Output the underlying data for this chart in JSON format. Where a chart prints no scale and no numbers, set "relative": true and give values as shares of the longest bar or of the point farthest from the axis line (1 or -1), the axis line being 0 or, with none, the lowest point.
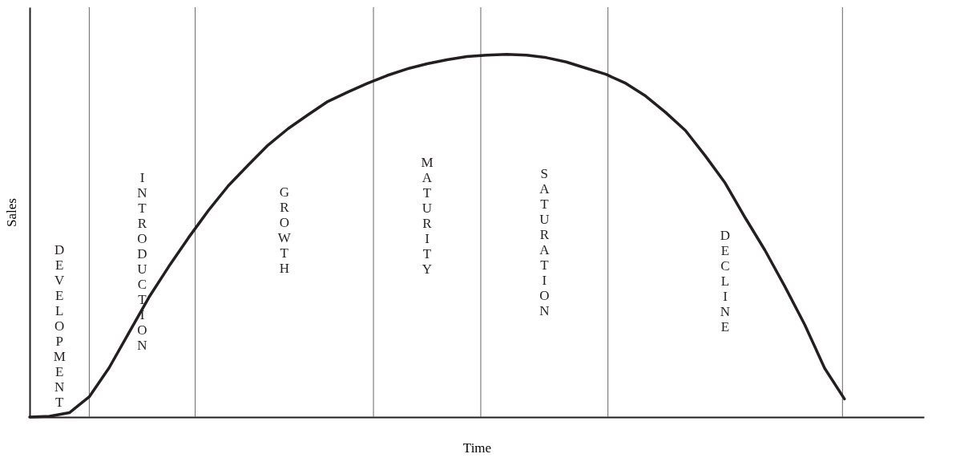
{
  "chart_data": {
    "type": "line",
    "relative": true,
    "grid": "x",
    "xlabel": "Time",
    "ylabel": "Sales",
    "categories": [
      null,
      null,
      null,
      null,
      null,
      null,
      null,
      null,
      null,
      null,
      null,
      null,
      null,
      null,
      null,
      null,
      null,
      null,
      null,
      null,
      null,
      null,
      null,
      null,
      null,
      null,
      null,
      null,
      null,
      null,
      null,
      null,
      null,
      null,
      null,
      null,
      null,
      null,
      null,
      null,
      null,
      null,
      null,
      null,
      null,
      null
    ],
    "series": [
      {
        "color": "#231f20",
        "values": [
          0,
          0.002,
          0.012,
          0.056,
          0.136,
          0.233,
          0.33,
          0.415,
          0.495,
          0.57,
          0.638,
          0.695,
          0.75,
          0.795,
          0.833,
          0.87,
          0.896,
          0.92,
          0.942,
          0.96,
          0.974,
          0.985,
          0.994,
          0.998,
          1.0,
          0.998,
          0.991,
          0.979,
          0.962,
          0.945,
          0.92,
          0.885,
          0.84,
          0.79,
          0.72,
          0.645,
          0.55,
          0.46,
          0.36,
          0.255,
          0.135,
          0.05,
          null,
          null,
          null,
          null
        ]
      }
    ],
    "annotations": [
      "DEVELOPMENT",
      "INTRODUCTION",
      "GROWTH",
      "MATURITY",
      "SATURATION",
      "DECLINE"
    ]
  }
}
